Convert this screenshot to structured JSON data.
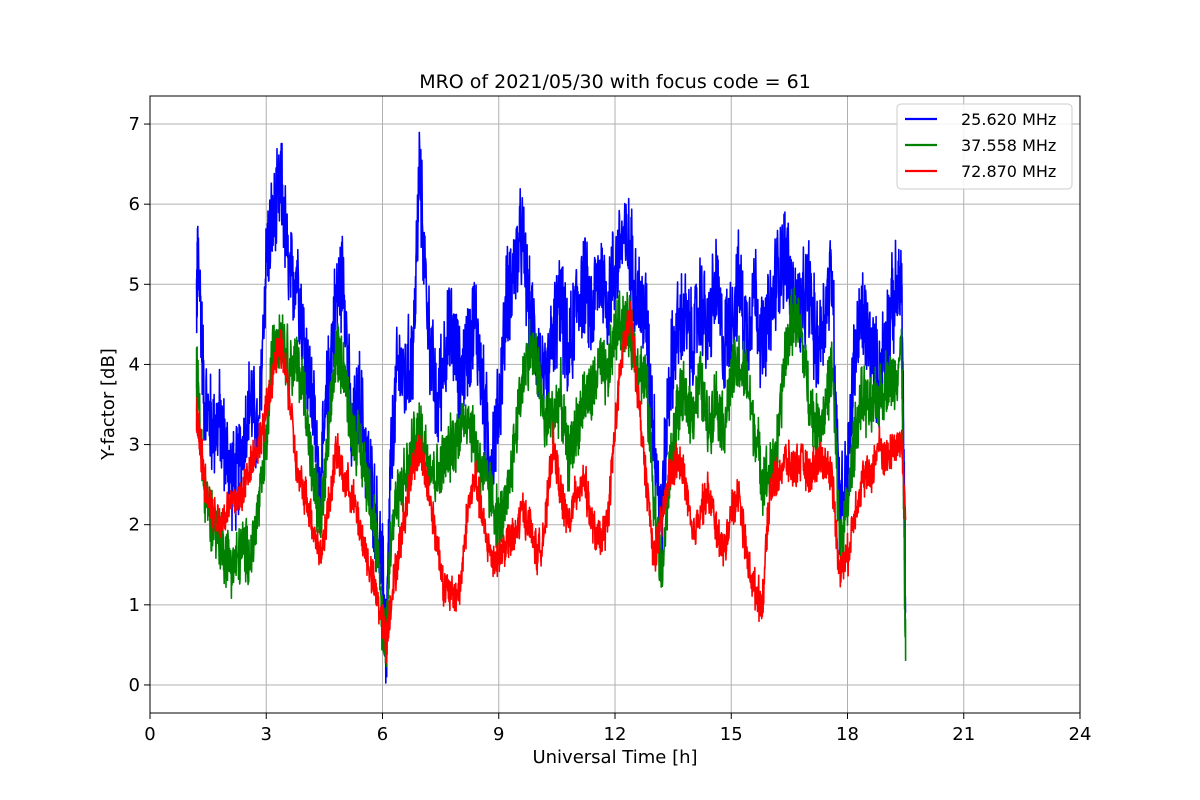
{
  "chart_data": {
    "type": "line",
    "title": "MRO of 2021/05/30 with focus code = 61",
    "xlabel": "Universal Time [h]",
    "ylabel": "Y-factor [dB]",
    "xlim": [
      0,
      24
    ],
    "ylim": [
      -0.35,
      7.35
    ],
    "xticks": [
      0,
      3,
      6,
      9,
      12,
      15,
      18,
      21,
      24
    ],
    "yticks": [
      0,
      1,
      2,
      3,
      4,
      5,
      6,
      7
    ],
    "grid": true,
    "legend_position": "upper right",
    "series": [
      {
        "name": "25.620 MHz",
        "color": "#0000ff",
        "x": [
          1.2,
          1.25,
          1.4,
          1.6,
          1.8,
          2.0,
          2.2,
          2.4,
          2.6,
          2.8,
          3.0,
          3.2,
          3.4,
          3.6,
          3.8,
          4.0,
          4.2,
          4.4,
          4.6,
          4.8,
          5.0,
          5.2,
          5.4,
          5.6,
          5.8,
          6.0,
          6.1,
          6.2,
          6.4,
          6.6,
          6.8,
          6.95,
          7.2,
          7.4,
          7.6,
          7.8,
          8.0,
          8.2,
          8.4,
          8.6,
          8.8,
          9.0,
          9.2,
          9.4,
          9.6,
          9.8,
          10.0,
          10.2,
          10.4,
          10.6,
          10.8,
          11.0,
          11.2,
          11.4,
          11.6,
          11.8,
          12.0,
          12.2,
          12.4,
          12.6,
          12.8,
          13.0,
          13.2,
          13.4,
          13.6,
          13.8,
          14.0,
          14.2,
          14.4,
          14.6,
          14.8,
          15.0,
          15.2,
          15.4,
          15.6,
          15.8,
          16.0,
          16.2,
          16.4,
          16.6,
          16.8,
          17.0,
          17.2,
          17.4,
          17.6,
          17.8,
          18.0,
          18.2,
          18.4,
          18.6,
          18.8,
          19.0,
          19.2,
          19.4,
          19.5
        ],
        "values": [
          4.8,
          5.4,
          3.6,
          3.2,
          3.3,
          2.8,
          2.5,
          3.0,
          3.6,
          3.0,
          5.4,
          5.8,
          6.2,
          5.0,
          5.2,
          4.2,
          3.5,
          2.4,
          3.8,
          4.8,
          5.2,
          3.0,
          3.6,
          2.8,
          2.2,
          1.4,
          0.4,
          2.6,
          4.0,
          3.8,
          4.2,
          6.4,
          4.4,
          3.4,
          4.2,
          4.4,
          3.8,
          4.2,
          4.6,
          3.6,
          2.8,
          3.4,
          4.8,
          5.2,
          5.6,
          4.6,
          4.2,
          3.6,
          4.4,
          4.8,
          4.0,
          4.8,
          5.0,
          4.6,
          5.2,
          4.8,
          5.2,
          5.6,
          5.4,
          4.8,
          4.6,
          3.2,
          2.0,
          3.8,
          4.4,
          4.6,
          4.2,
          4.8,
          4.4,
          5.0,
          4.2,
          4.6,
          5.0,
          4.4,
          5.0,
          4.2,
          4.6,
          5.2,
          5.4,
          4.8,
          4.6,
          5.0,
          4.2,
          4.6,
          5.2,
          2.2,
          2.6,
          4.2,
          4.6,
          4.2,
          3.8,
          4.4,
          4.8,
          5.0,
          0.9
        ]
      },
      {
        "name": "37.558 MHz",
        "color": "#008000",
        "x": [
          1.2,
          1.25,
          1.4,
          1.6,
          1.8,
          2.0,
          2.2,
          2.4,
          2.6,
          2.8,
          3.0,
          3.2,
          3.4,
          3.6,
          3.8,
          4.0,
          4.2,
          4.4,
          4.6,
          4.8,
          5.0,
          5.2,
          5.4,
          5.6,
          5.8,
          6.0,
          6.1,
          6.2,
          6.4,
          6.6,
          6.8,
          7.0,
          7.2,
          7.4,
          7.6,
          7.8,
          8.0,
          8.2,
          8.4,
          8.6,
          8.8,
          9.0,
          9.2,
          9.4,
          9.6,
          9.8,
          10.0,
          10.2,
          10.4,
          10.6,
          10.8,
          11.0,
          11.2,
          11.4,
          11.6,
          11.8,
          12.0,
          12.2,
          12.4,
          12.6,
          12.8,
          13.0,
          13.2,
          13.4,
          13.6,
          13.8,
          14.0,
          14.2,
          14.4,
          14.6,
          14.8,
          15.0,
          15.2,
          15.4,
          15.6,
          15.8,
          16.0,
          16.2,
          16.4,
          16.6,
          16.8,
          17.0,
          17.2,
          17.4,
          17.6,
          17.8,
          18.0,
          18.2,
          18.4,
          18.6,
          18.8,
          19.0,
          19.2,
          19.4,
          19.5
        ],
        "values": [
          3.9,
          3.6,
          2.4,
          2.1,
          1.8,
          1.6,
          1.5,
          1.7,
          1.6,
          2.2,
          3.0,
          4.4,
          4.4,
          4.0,
          4.0,
          3.6,
          2.6,
          2.0,
          3.0,
          4.2,
          4.0,
          3.2,
          3.0,
          2.6,
          2.0,
          0.8,
          0.6,
          1.8,
          2.4,
          2.6,
          3.0,
          3.2,
          2.8,
          2.6,
          2.8,
          3.0,
          3.2,
          3.4,
          3.0,
          2.6,
          2.4,
          2.0,
          2.2,
          3.0,
          3.8,
          4.2,
          4.0,
          3.2,
          3.4,
          3.6,
          2.8,
          3.2,
          3.6,
          3.6,
          4.0,
          3.8,
          4.4,
          4.6,
          4.4,
          4.0,
          3.8,
          2.4,
          1.3,
          2.6,
          3.4,
          3.6,
          3.4,
          3.8,
          3.2,
          3.6,
          3.2,
          3.8,
          4.0,
          3.8,
          3.2,
          2.6,
          2.6,
          3.0,
          4.2,
          4.6,
          4.4,
          3.6,
          3.2,
          3.4,
          4.0,
          1.8,
          2.2,
          3.2,
          3.6,
          3.4,
          3.6,
          3.8,
          3.8,
          4.2,
          0.3
        ]
      },
      {
        "name": "72.870 MHz",
        "color": "#ff0000",
        "x": [
          1.2,
          1.25,
          1.4,
          1.6,
          1.8,
          2.0,
          2.2,
          2.4,
          2.6,
          2.8,
          3.0,
          3.2,
          3.4,
          3.6,
          3.8,
          4.0,
          4.2,
          4.4,
          4.6,
          4.8,
          5.0,
          5.2,
          5.4,
          5.6,
          5.8,
          6.0,
          6.1,
          6.2,
          6.4,
          6.6,
          6.8,
          7.0,
          7.2,
          7.4,
          7.6,
          7.8,
          8.0,
          8.2,
          8.4,
          8.6,
          8.8,
          9.0,
          9.2,
          9.4,
          9.6,
          9.8,
          10.0,
          10.2,
          10.4,
          10.6,
          10.8,
          11.0,
          11.2,
          11.4,
          11.6,
          11.8,
          12.0,
          12.2,
          12.4,
          12.6,
          12.8,
          13.0,
          13.2,
          13.4,
          13.6,
          13.8,
          14.0,
          14.2,
          14.4,
          14.6,
          14.8,
          15.0,
          15.2,
          15.4,
          15.6,
          15.8,
          16.0,
          16.2,
          16.4,
          16.6,
          16.8,
          17.0,
          17.2,
          17.4,
          17.6,
          17.8,
          18.0,
          18.2,
          18.4,
          18.6,
          18.8,
          19.0,
          19.2,
          19.4,
          19.5
        ],
        "values": [
          3.4,
          3.2,
          2.6,
          2.2,
          2.0,
          2.2,
          2.3,
          2.4,
          2.8,
          3.0,
          3.4,
          4.0,
          4.2,
          3.6,
          2.6,
          2.4,
          2.0,
          1.6,
          2.2,
          2.9,
          2.6,
          2.4,
          2.0,
          1.6,
          1.2,
          0.8,
          0.5,
          1.0,
          1.6,
          2.2,
          2.8,
          2.9,
          2.4,
          1.8,
          1.2,
          1.1,
          1.2,
          2.2,
          2.6,
          2.0,
          1.6,
          1.6,
          1.8,
          1.8,
          2.2,
          2.0,
          1.6,
          2.0,
          3.0,
          2.4,
          2.0,
          2.4,
          2.6,
          2.0,
          1.8,
          2.0,
          3.2,
          4.2,
          4.6,
          3.6,
          2.6,
          1.6,
          2.0,
          2.6,
          2.8,
          2.6,
          1.8,
          2.2,
          2.4,
          2.0,
          1.6,
          2.2,
          2.4,
          1.6,
          1.2,
          1.0,
          2.4,
          2.6,
          2.8,
          2.7,
          2.8,
          2.6,
          2.8,
          2.8,
          2.6,
          1.4,
          1.6,
          2.2,
          2.6,
          2.6,
          3.0,
          2.8,
          3.0,
          3.0,
          2.1
        ]
      }
    ]
  }
}
